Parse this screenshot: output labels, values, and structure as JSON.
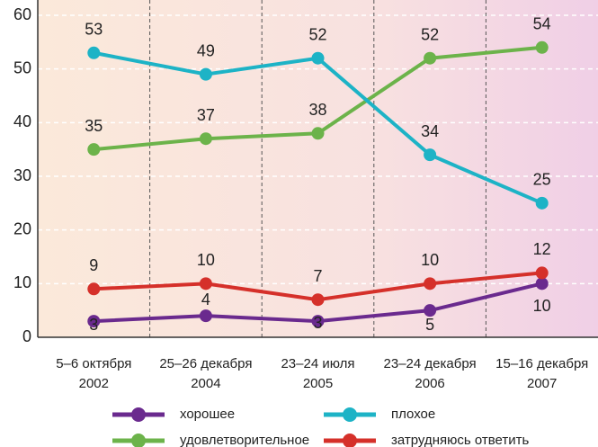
{
  "chart_data": {
    "type": "line",
    "categories": [
      [
        "5–6 октября",
        "2002"
      ],
      [
        "25–26 декабря",
        "2004"
      ],
      [
        "23–24 июля",
        "2005"
      ],
      [
        "23–24 декабря",
        "2006"
      ],
      [
        "15–16 декабря",
        "2007"
      ]
    ],
    "series": [
      {
        "name": "хорошее",
        "color": "#6a2a8e",
        "values": [
          3,
          4,
          3,
          5,
          10
        ]
      },
      {
        "name": "удовлетворительное",
        "color": "#6cb34a",
        "values": [
          35,
          37,
          38,
          52,
          54
        ]
      },
      {
        "name": "плохое",
        "color": "#1db3c6",
        "values": [
          53,
          49,
          52,
          34,
          25
        ]
      },
      {
        "name": "затрудняюсь ответить",
        "color": "#d5302a",
        "values": [
          9,
          10,
          7,
          10,
          12
        ]
      }
    ],
    "ylim": [
      0,
      60
    ],
    "yticks": [
      0,
      10,
      20,
      30,
      40,
      50,
      60
    ],
    "grid": true
  }
}
